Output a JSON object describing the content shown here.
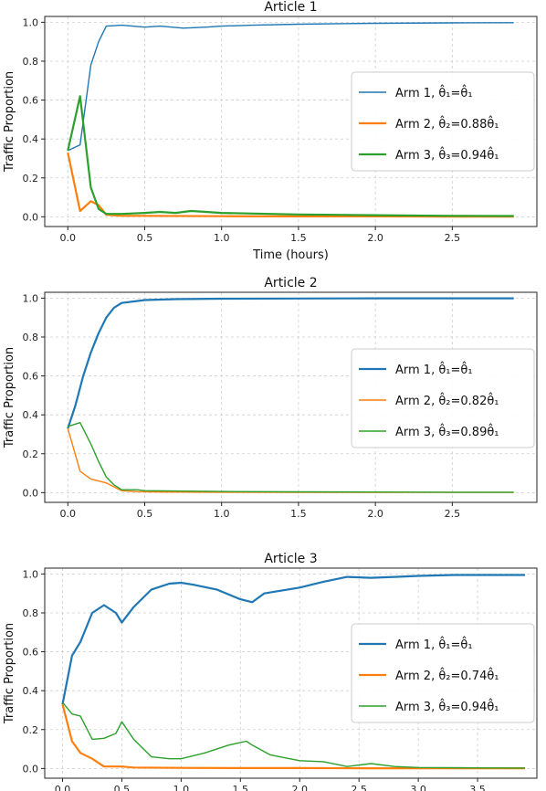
{
  "colors": {
    "arm1": "#1f77b4",
    "arm2": "#ff7f0e",
    "arm3": "#2ca02c"
  },
  "chart_data": [
    {
      "type": "line",
      "title": "Article 1",
      "xlabel": "Time (hours)",
      "ylabel": "Traffic Proportion",
      "xlim": [
        -0.15,
        3.05
      ],
      "ylim": [
        -0.05,
        1.03
      ],
      "xticks": [
        "0.0",
        "0.5",
        "1.0",
        "1.5",
        "2.0",
        "2.5"
      ],
      "yticks": [
        "0.0",
        "0.2",
        "0.4",
        "0.6",
        "0.8",
        "1.0"
      ],
      "grid": true,
      "legend_position": "center-right",
      "series": [
        {
          "name": "Arm 1, θ̂₁=θ̂₁",
          "color_key": "arm1",
          "thick": false,
          "x": [
            0,
            0.08,
            0.15,
            0.2,
            0.25,
            0.35,
            0.5,
            0.6,
            0.75,
            0.9,
            1.0,
            1.2,
            1.5,
            2.0,
            2.5,
            2.9
          ],
          "y": [
            0.34,
            0.37,
            0.78,
            0.9,
            0.98,
            0.985,
            0.975,
            0.98,
            0.97,
            0.975,
            0.98,
            0.985,
            0.99,
            0.995,
            0.997,
            0.998
          ]
        },
        {
          "name": "Arm 2, θ̂₂=0.88θ̂₁",
          "color_key": "arm2",
          "thick": true,
          "x": [
            0,
            0.08,
            0.15,
            0.2,
            0.25,
            0.35,
            0.5,
            1.0,
            1.5,
            2.0,
            2.5,
            2.9
          ],
          "y": [
            0.33,
            0.03,
            0.08,
            0.06,
            0.01,
            0.005,
            0.005,
            0.003,
            0.002,
            0.002,
            0.001,
            0.001
          ]
        },
        {
          "name": "Arm 3, θ̂₃=0.94θ̂₁",
          "color_key": "arm3",
          "thick": true,
          "x": [
            0,
            0.08,
            0.15,
            0.2,
            0.25,
            0.35,
            0.5,
            0.6,
            0.7,
            0.8,
            0.9,
            1.0,
            1.5,
            2.0,
            2.5,
            2.9
          ],
          "y": [
            0.34,
            0.62,
            0.15,
            0.04,
            0.015,
            0.015,
            0.02,
            0.025,
            0.02,
            0.03,
            0.025,
            0.02,
            0.012,
            0.008,
            0.005,
            0.004
          ]
        }
      ]
    },
    {
      "type": "line",
      "title": "Article 2",
      "xlabel": "",
      "ylabel": "Traffic Proportion",
      "xlim": [
        -0.15,
        3.05
      ],
      "ylim": [
        -0.05,
        1.03
      ],
      "xticks": [
        "0.0",
        "0.5",
        "1.0",
        "1.5",
        "2.0",
        "2.5"
      ],
      "yticks": [
        "0.0",
        "0.2",
        "0.4",
        "0.6",
        "0.8",
        "1.0"
      ],
      "grid": true,
      "legend_position": "center-right",
      "series": [
        {
          "name": "Arm 1, θ̂₁=θ̂₁",
          "color_key": "arm1",
          "thick": true,
          "x": [
            0,
            0.05,
            0.1,
            0.15,
            0.2,
            0.25,
            0.3,
            0.35,
            0.5,
            0.7,
            1.0,
            1.5,
            2.0,
            2.5,
            2.9
          ],
          "y": [
            0.33,
            0.45,
            0.6,
            0.72,
            0.82,
            0.9,
            0.95,
            0.975,
            0.99,
            0.995,
            0.997,
            0.998,
            0.999,
            0.999,
            0.999
          ]
        },
        {
          "name": "Arm 2, θ̂₂=0.82θ̂₁",
          "color_key": "arm2",
          "thick": false,
          "x": [
            0,
            0.08,
            0.15,
            0.25,
            0.3,
            0.35,
            0.45,
            0.6,
            1.0,
            1.5,
            2.0,
            2.5,
            2.9
          ],
          "y": [
            0.33,
            0.11,
            0.07,
            0.05,
            0.03,
            0.01,
            0.005,
            0.003,
            0.002,
            0.001,
            0.001,
            0.001,
            0.001
          ]
        },
        {
          "name": "Arm 3, θ̂₃=0.89θ̂₁",
          "color_key": "arm3",
          "thick": false,
          "x": [
            0,
            0.08,
            0.15,
            0.2,
            0.25,
            0.3,
            0.35,
            0.45,
            0.5,
            0.7,
            1.0,
            1.5,
            2.0,
            2.5,
            2.9
          ],
          "y": [
            0.34,
            0.36,
            0.25,
            0.16,
            0.08,
            0.04,
            0.015,
            0.015,
            0.01,
            0.008,
            0.006,
            0.004,
            0.003,
            0.002,
            0.002
          ]
        }
      ]
    },
    {
      "type": "line",
      "title": "Article 3",
      "xlabel": "",
      "ylabel": "Traffic Proportion",
      "xlim": [
        -0.15,
        4.0
      ],
      "ylim": [
        -0.05,
        1.03
      ],
      "xticks": [
        "0.0",
        "0.5",
        "1.0",
        "1.5",
        "2.0",
        "2.5",
        "3.0",
        "3.5"
      ],
      "yticks": [
        "0.0",
        "0.2",
        "0.4",
        "0.6",
        "0.8",
        "1.0"
      ],
      "grid": true,
      "legend_position": "lower-right",
      "series": [
        {
          "name": "Arm 1, θ̂₁=θ̂₁",
          "color_key": "arm1",
          "thick": true,
          "x": [
            0,
            0.08,
            0.15,
            0.25,
            0.35,
            0.45,
            0.5,
            0.6,
            0.75,
            0.9,
            1.0,
            1.1,
            1.3,
            1.5,
            1.6,
            1.7,
            2.0,
            2.2,
            2.4,
            2.6,
            2.8,
            3.0,
            3.3,
            3.6,
            3.9
          ],
          "y": [
            0.33,
            0.58,
            0.65,
            0.8,
            0.84,
            0.8,
            0.75,
            0.83,
            0.92,
            0.95,
            0.955,
            0.945,
            0.92,
            0.87,
            0.855,
            0.9,
            0.93,
            0.96,
            0.985,
            0.98,
            0.985,
            0.99,
            0.995,
            0.995,
            0.995
          ]
        },
        {
          "name": "Arm 2, θ̂₂=0.74θ̂₁",
          "color_key": "arm2",
          "thick": true,
          "x": [
            0,
            0.08,
            0.15,
            0.25,
            0.35,
            0.5,
            0.6,
            1.0,
            1.5,
            2.0,
            2.5,
            3.0,
            3.5,
            3.9
          ],
          "y": [
            0.33,
            0.14,
            0.08,
            0.05,
            0.01,
            0.01,
            0.005,
            0.003,
            0.002,
            0.002,
            0.001,
            0.001,
            0.001,
            0.001
          ]
        },
        {
          "name": "Arm 3, θ̂₃=0.94θ̂₁",
          "color_key": "arm3",
          "thick": false,
          "x": [
            0,
            0.08,
            0.15,
            0.25,
            0.35,
            0.45,
            0.5,
            0.6,
            0.75,
            0.9,
            1.0,
            1.2,
            1.4,
            1.55,
            1.6,
            1.75,
            2.0,
            2.2,
            2.4,
            2.6,
            2.8,
            3.0,
            3.5,
            3.9
          ],
          "y": [
            0.34,
            0.28,
            0.27,
            0.15,
            0.155,
            0.18,
            0.24,
            0.15,
            0.06,
            0.05,
            0.05,
            0.08,
            0.12,
            0.14,
            0.12,
            0.07,
            0.04,
            0.035,
            0.01,
            0.025,
            0.01,
            0.005,
            0.003,
            0.002
          ]
        }
      ]
    }
  ]
}
